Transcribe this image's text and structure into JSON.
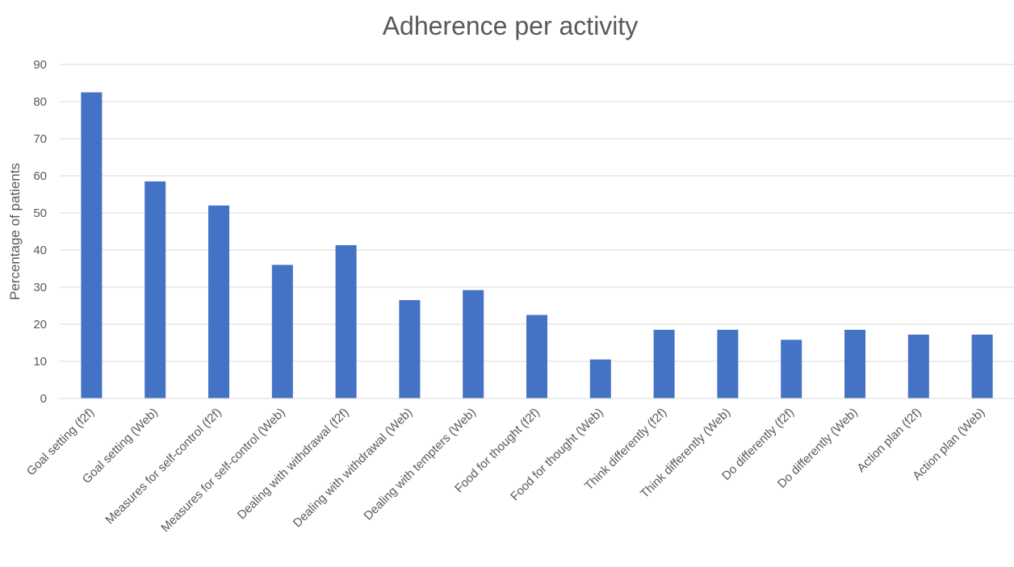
{
  "chart_data": {
    "type": "bar",
    "title": "Adherence per activity",
    "xlabel": "",
    "ylabel": "Percentage of patients",
    "ylim": [
      0,
      90
    ],
    "yticks": [
      0,
      10,
      20,
      30,
      40,
      50,
      60,
      70,
      80,
      90
    ],
    "grid": true,
    "legend": "none",
    "bar_color": "#4472C4",
    "categories": [
      "Goal setting (f2f)",
      "Goal setting (Web)",
      "Measures for self-control (f2f)",
      "Measures for self-control (Web)",
      "Dealing with withdrawal (f2f)",
      "Dealing with withdrawal (Web)",
      "Dealing with tempters (Web)",
      "Food for thought (f2f)",
      "Food for thought (Web)",
      "Think differently (f2f)",
      "Think differently (Web)",
      "Do differently (f2f)",
      "Do differently (Web)",
      "Action plan (f2f)",
      "Action plan (Web)"
    ],
    "values": [
      82.5,
      58.5,
      52,
      36,
      41.3,
      26.5,
      29.2,
      22.5,
      10.5,
      18.5,
      18.5,
      15.8,
      18.5,
      17.2,
      17.2
    ]
  }
}
